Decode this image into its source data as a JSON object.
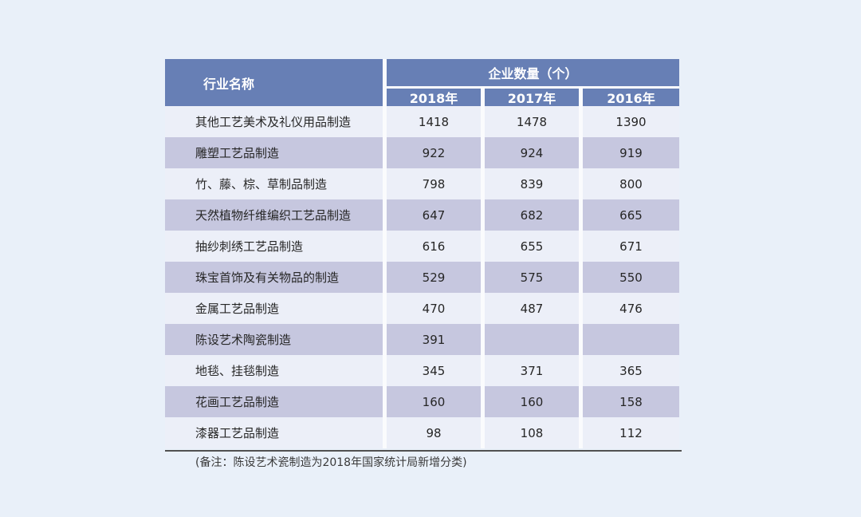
{
  "table": {
    "header": {
      "industry_col": "行业名称",
      "group_header": "企业数量（个）",
      "year_cols": [
        "2018年",
        "2017年",
        "2016年"
      ]
    },
    "rows": [
      {
        "name": "其他工艺美术及礼仪用品制造",
        "y2018": "1418",
        "y2017": "1478",
        "y2016": "1390"
      },
      {
        "name": "雕塑工艺品制造",
        "y2018": "922",
        "y2017": "924",
        "y2016": "919"
      },
      {
        "name": "竹、藤、棕、草制品制造",
        "y2018": "798",
        "y2017": "839",
        "y2016": "800"
      },
      {
        "name": "天然植物纤维编织工艺品制造",
        "y2018": "647",
        "y2017": "682",
        "y2016": "665"
      },
      {
        "name": "抽纱刺绣工艺品制造",
        "y2018": "616",
        "y2017": "655",
        "y2016": "671"
      },
      {
        "name": "珠宝首饰及有关物品的制造",
        "y2018": "529",
        "y2017": "575",
        "y2016": "550"
      },
      {
        "name": "金属工艺品制造",
        "y2018": "470",
        "y2017": "487",
        "y2016": "476"
      },
      {
        "name": "陈设艺术陶瓷制造",
        "y2018": "391",
        "y2017": "",
        "y2016": ""
      },
      {
        "name": "地毯、挂毯制造",
        "y2018": "345",
        "y2017": "371",
        "y2016": "365"
      },
      {
        "name": "花画工艺品制造",
        "y2018": "160",
        "y2017": "160",
        "y2016": "158"
      },
      {
        "name": "漆器工艺品制造",
        "y2018": "98",
        "y2017": "108",
        "y2016": "112"
      }
    ],
    "note": "(备注：陈设艺术瓷制造为2018年国家统计局新增分类)"
  },
  "colors": {
    "page_background": "#e9f0f9",
    "header_blue": "#677fb5",
    "header_text": "#ffffff",
    "row_light": "#eceff8",
    "row_lavender": "#c6c7df",
    "cell_gutter": "#fafbfd",
    "body_text": "#262626",
    "note_text": "#3a3a3a",
    "divider": "#515151"
  },
  "chart_data": {
    "type": "table",
    "title": "企业数量（个）",
    "columns": [
      "行业名称",
      "2018年",
      "2017年",
      "2016年"
    ],
    "rows": [
      [
        "其他工艺美术及礼仪用品制造",
        1418,
        1478,
        1390
      ],
      [
        "雕塑工艺品制造",
        922,
        924,
        919
      ],
      [
        "竹、藤、棕、草制品制造",
        798,
        839,
        800
      ],
      [
        "天然植物纤维编织工艺品制造",
        647,
        682,
        665
      ],
      [
        "抽纱刺绣工艺品制造",
        616,
        655,
        671
      ],
      [
        "珠宝首饰及有关物品的制造",
        529,
        575,
        550
      ],
      [
        "金属工艺品制造",
        470,
        487,
        476
      ],
      [
        "陈设艺术陶瓷制造",
        391,
        null,
        null
      ],
      [
        "地毯、挂毯制造",
        345,
        371,
        365
      ],
      [
        "花画工艺品制造",
        160,
        160,
        158
      ],
      [
        "漆器工艺品制造",
        98,
        108,
        112
      ]
    ],
    "note": "(备注：陈设艺术瓷制造为2018年国家统计局新增分类)"
  }
}
